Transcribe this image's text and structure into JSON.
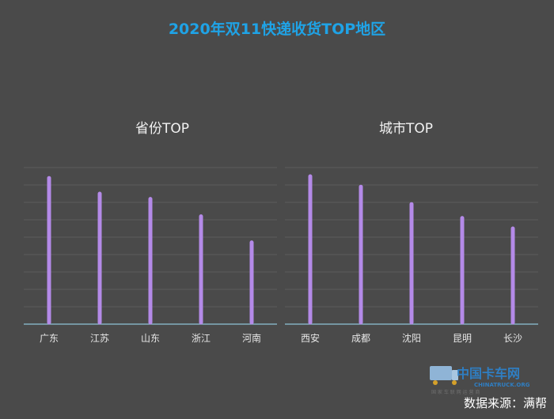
{
  "page": {
    "title": "2020年双11快递收货TOP地区",
    "source": "数据来源：满帮",
    "watermark": {
      "cn": "中国卡车网",
      "en": "CHINATRUCK.ORG",
      "sub": "国 家 车 联 网 运 营 商"
    }
  },
  "colors": {
    "background": "#4a4a4a",
    "title": "#1fa3e6",
    "bar": "#b48ae8",
    "gridline": "#5c5c5c",
    "baseline": "#8fc3d6"
  },
  "chart_data": [
    {
      "type": "bar",
      "title": "省份TOP",
      "categories": [
        "广东",
        "江苏",
        "山东",
        "浙江",
        "河南"
      ],
      "values": [
        8.4,
        7.5,
        7.2,
        6.2,
        4.7
      ],
      "ylim": [
        0,
        9
      ],
      "grid": true,
      "xlabel": "",
      "ylabel": ""
    },
    {
      "type": "bar",
      "title": "城市TOP",
      "categories": [
        "西安",
        "成都",
        "沈阳",
        "昆明",
        "长沙"
      ],
      "values": [
        8.5,
        7.9,
        6.9,
        6.1,
        5.5
      ],
      "ylim": [
        0,
        9
      ],
      "grid": true,
      "xlabel": "",
      "ylabel": ""
    }
  ]
}
